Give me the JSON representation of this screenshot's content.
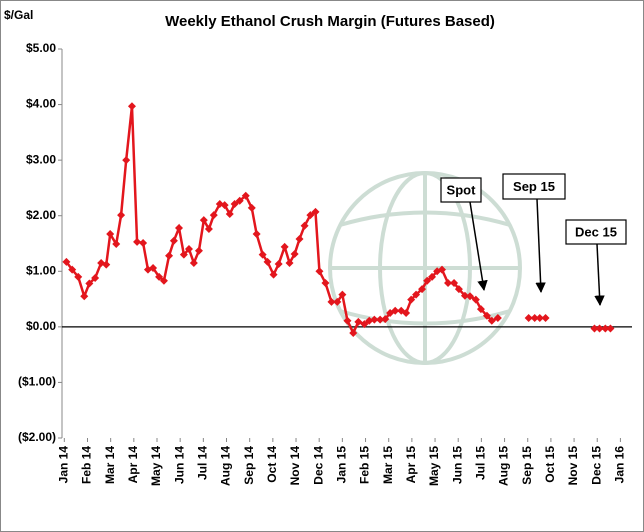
{
  "chart_data": {
    "type": "line",
    "title": "Weekly Ethanol Crush Margin (Futures Based)",
    "y_label": "$/Gal",
    "color": "#e3161d",
    "x": [
      0.09,
      0.34,
      0.6,
      0.86,
      1.08,
      1.33,
      1.59,
      1.81,
      1.98,
      2.24,
      2.45,
      2.67,
      2.92,
      3.14,
      3.4,
      3.61,
      3.83,
      4.09,
      4.3,
      4.52,
      4.73,
      4.95,
      5.16,
      5.38,
      5.59,
      5.81,
      6.02,
      6.24,
      6.45,
      6.71,
      6.92,
      7.14,
      7.35,
      7.57,
      7.83,
      8.09,
      8.3,
      8.56,
      8.77,
      9.03,
      9.25,
      9.51,
      9.72,
      9.94,
      10.15,
      10.37,
      10.62,
      10.84,
      11.01,
      11.27,
      11.53,
      11.78,
      12.0,
      12.22,
      12.47,
      12.69,
      12.95,
      13.16,
      13.38,
      13.63,
      13.85,
      14.06,
      14.28,
      14.54,
      14.75,
      14.97,
      15.18,
      15.44,
      15.66,
      15.87,
      16.09,
      16.3,
      16.56,
      16.82,
      17.03,
      17.29,
      17.51,
      17.76,
      17.98,
      18.24,
      18.45,
      18.71,
      19.4,
      20.04,
      20.3,
      20.52,
      20.77,
      21.8,
      22.88,
      23.1,
      23.35,
      23.57
    ],
    "values": [
      1.17,
      1.03,
      0.9,
      0.55,
      0.78,
      0.88,
      1.15,
      1.12,
      1.67,
      1.49,
      2.01,
      3.0,
      3.97,
      1.53,
      1.51,
      1.03,
      1.06,
      0.9,
      0.83,
      1.28,
      1.55,
      1.78,
      1.3,
      1.4,
      1.15,
      1.37,
      1.92,
      1.76,
      2.01,
      2.21,
      2.19,
      2.03,
      2.21,
      2.27,
      2.36,
      2.14,
      1.67,
      1.3,
      1.17,
      0.94,
      1.13,
      1.44,
      1.15,
      1.31,
      1.58,
      1.82,
      2.01,
      2.07,
      1.0,
      0.79,
      0.45,
      0.45,
      0.58,
      0.11,
      -0.11,
      0.09,
      0.05,
      0.11,
      0.13,
      0.13,
      0.14,
      0.25,
      0.29,
      0.29,
      0.25,
      0.49,
      0.58,
      0.68,
      0.83,
      0.9,
      1.0,
      1.03,
      0.79,
      0.79,
      0.68,
      0.56,
      0.55,
      0.49,
      0.32,
      0.2,
      0.11,
      0.16,
      null,
      0.16,
      0.16,
      0.16,
      0.16,
      null,
      -0.03,
      -0.03,
      -0.03,
      -0.03
    ],
    "xlim": [
      -0.1,
      24.5
    ],
    "xticks": [
      {
        "value": 0,
        "label": "Jan 14"
      },
      {
        "value": 1,
        "label": "Feb 14"
      },
      {
        "value": 2,
        "label": "Mar 14"
      },
      {
        "value": 3,
        "label": "Apr 14"
      },
      {
        "value": 4,
        "label": "May 14"
      },
      {
        "value": 5,
        "label": "Jun 14"
      },
      {
        "value": 6,
        "label": "Jul 14"
      },
      {
        "value": 7,
        "label": "Aug 14"
      },
      {
        "value": 8,
        "label": "Sep 14"
      },
      {
        "value": 9,
        "label": "Oct 14"
      },
      {
        "value": 10,
        "label": "Nov 14"
      },
      {
        "value": 11,
        "label": "Dec 14"
      },
      {
        "value": 12,
        "label": "Jan 15"
      },
      {
        "value": 13,
        "label": "Feb 15"
      },
      {
        "value": 14,
        "label": "Mar 15"
      },
      {
        "value": 15,
        "label": "Apr 15"
      },
      {
        "value": 16,
        "label": "May 15"
      },
      {
        "value": 17,
        "label": "Jun 15"
      },
      {
        "value": 18,
        "label": "Jul 15"
      },
      {
        "value": 19,
        "label": "Aug 15"
      },
      {
        "value": 20,
        "label": "Sep 15"
      },
      {
        "value": 21,
        "label": "Oct 15"
      },
      {
        "value": 22,
        "label": "Nov 15"
      },
      {
        "value": 23,
        "label": "Dec 15"
      },
      {
        "value": 24,
        "label": "Jan 16"
      }
    ],
    "ylim": [
      -2,
      5
    ],
    "yticks": [
      {
        "value": 5,
        "label": "$5.00"
      },
      {
        "value": 4,
        "label": "$4.00"
      },
      {
        "value": 3,
        "label": "$3.00"
      },
      {
        "value": 2,
        "label": "$2.00"
      },
      {
        "value": 1,
        "label": "$1.00"
      },
      {
        "value": 0,
        "label": "$0.00"
      },
      {
        "value": -1,
        "label": "($1.00)"
      },
      {
        "value": -2,
        "label": "($2.00)"
      }
    ],
    "grid": false,
    "annotations": [
      {
        "text": "Spot"
      },
      {
        "text": "Sep 15"
      },
      {
        "text": "Dec 15"
      }
    ]
  }
}
